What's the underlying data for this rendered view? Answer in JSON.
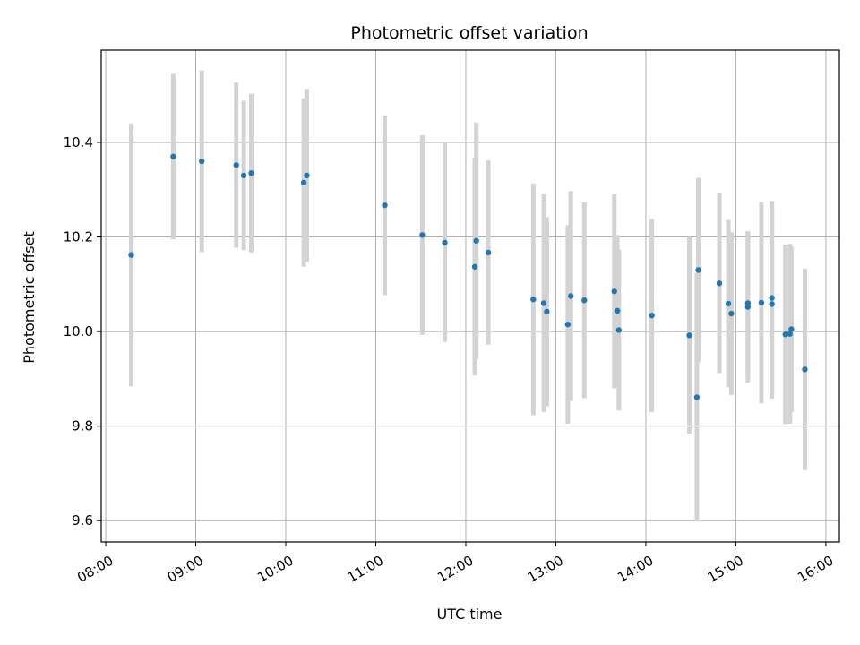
{
  "chart_data": {
    "type": "scatter",
    "title": "Photometric offset variation",
    "xlabel": "UTC time",
    "ylabel": "Photometric offset",
    "x_tick_labels": [
      "08:00",
      "09:00",
      "10:00",
      "11:00",
      "12:00",
      "13:00",
      "14:00",
      "15:00",
      "16:00"
    ],
    "y_tick_labels": [
      "9.6",
      "9.8",
      "10.0",
      "10.2",
      "10.4"
    ],
    "xlim": [
      "07:57",
      "16:09"
    ],
    "ylim": [
      9.555,
      10.595
    ],
    "grid": true,
    "colors": {
      "points": "#1f77b4",
      "errorbars": "#d3d3d3",
      "grid": "#b0b0b0"
    },
    "points": [
      {
        "x": "08:17",
        "y": 10.162,
        "err": 0.278
      },
      {
        "x": "08:45",
        "y": 10.37,
        "err": 0.175
      },
      {
        "x": "09:04",
        "y": 10.36,
        "err": 0.192
      },
      {
        "x": "09:27",
        "y": 10.352,
        "err": 0.175
      },
      {
        "x": "09:32",
        "y": 10.33,
        "err": 0.158
      },
      {
        "x": "09:37",
        "y": 10.335,
        "err": 0.168
      },
      {
        "x": "10:12",
        "y": 10.315,
        "err": 0.178
      },
      {
        "x": "10:14",
        "y": 10.33,
        "err": 0.183
      },
      {
        "x": "11:06",
        "y": 10.267,
        "err": 0.19
      },
      {
        "x": "11:31",
        "y": 10.204,
        "err": 0.211
      },
      {
        "x": "11:46",
        "y": 10.188,
        "err": 0.21
      },
      {
        "x": "12:06",
        "y": 10.137,
        "err": 0.23
      },
      {
        "x": "12:07",
        "y": 10.192,
        "err": 0.25
      },
      {
        "x": "12:15",
        "y": 10.167,
        "err": 0.195
      },
      {
        "x": "12:45",
        "y": 10.068,
        "err": 0.245
      },
      {
        "x": "12:52",
        "y": 10.06,
        "err": 0.23
      },
      {
        "x": "12:54",
        "y": 10.042,
        "err": 0.2
      },
      {
        "x": "13:08",
        "y": 10.015,
        "err": 0.21
      },
      {
        "x": "13:10",
        "y": 10.075,
        "err": 0.222
      },
      {
        "x": "13:19",
        "y": 10.066,
        "err": 0.207
      },
      {
        "x": "13:39",
        "y": 10.085,
        "err": 0.205
      },
      {
        "x": "13:41",
        "y": 10.044,
        "err": 0.16
      },
      {
        "x": "13:42",
        "y": 10.003,
        "err": 0.17
      },
      {
        "x": "14:04",
        "y": 10.034,
        "err": 0.204
      },
      {
        "x": "14:29",
        "y": 9.992,
        "err": 0.208
      },
      {
        "x": "14:34",
        "y": 9.861,
        "err": 0.263
      },
      {
        "x": "14:35",
        "y": 10.13,
        "err": 0.195
      },
      {
        "x": "14:49",
        "y": 10.102,
        "err": 0.19
      },
      {
        "x": "14:55",
        "y": 10.059,
        "err": 0.177
      },
      {
        "x": "14:57",
        "y": 10.038,
        "err": 0.172
      },
      {
        "x": "15:08",
        "y": 10.06,
        "err": 0.15
      },
      {
        "x": "15:08",
        "y": 10.052,
        "err": 0.16
      },
      {
        "x": "15:17",
        "y": 10.061,
        "err": 0.213
      },
      {
        "x": "15:24",
        "y": 10.071,
        "err": 0.205
      },
      {
        "x": "15:24",
        "y": 10.058,
        "err": 0.2
      },
      {
        "x": "15:33",
        "y": 9.994,
        "err": 0.19
      },
      {
        "x": "15:36",
        "y": 9.995,
        "err": 0.19
      },
      {
        "x": "15:37",
        "y": 10.005,
        "err": 0.175
      },
      {
        "x": "15:46",
        "y": 9.92,
        "err": 0.213
      }
    ]
  }
}
